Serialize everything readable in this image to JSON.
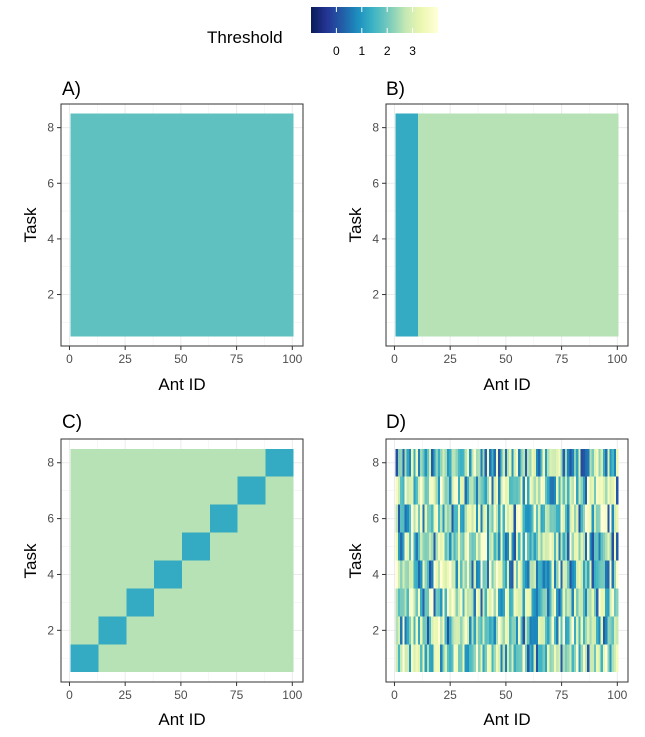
{
  "legend": {
    "title": "Threshold",
    "ticks": [
      "0",
      "1",
      "2",
      "3"
    ],
    "range": [
      -1,
      4
    ],
    "colors": [
      "#081d58",
      "#253494",
      "#225ea8",
      "#1d91c0",
      "#41b6c4",
      "#7fcdbb",
      "#c7e9b4",
      "#edf8b1",
      "#ffffd9"
    ]
  },
  "chart_data": [
    {
      "type": "heatmap",
      "panel_label": "A)",
      "xlabel": "Ant ID",
      "ylabel": "Task",
      "xlim": [
        0.5,
        100.5
      ],
      "ylim": [
        0.5,
        8.5
      ],
      "xticks": [
        "0",
        "25",
        "50",
        "75",
        "100"
      ],
      "yticks": [
        "2",
        "4",
        "6",
        "8"
      ],
      "pattern": "uniform",
      "value": 1.8,
      "grid": true
    },
    {
      "type": "heatmap",
      "panel_label": "B)",
      "xlabel": "Ant ID",
      "ylabel": "Task",
      "xlim": [
        0.5,
        100.5
      ],
      "ylim": [
        0.5,
        8.5
      ],
      "xticks": [
        "0",
        "25",
        "50",
        "75",
        "100"
      ],
      "yticks": [
        "2",
        "4",
        "6",
        "8"
      ],
      "pattern": "column_split",
      "low_cols": 10,
      "low_value": 1.3,
      "high_value": 2.6,
      "grid": true
    },
    {
      "type": "heatmap",
      "panel_label": "C)",
      "xlabel": "Ant ID",
      "ylabel": "Task",
      "xlim": [
        0.5,
        100.5
      ],
      "ylim": [
        0.5,
        8.5
      ],
      "xticks": [
        "0",
        "25",
        "50",
        "75",
        "100"
      ],
      "yticks": [
        "2",
        "4",
        "6",
        "8"
      ],
      "pattern": "diagonal_blocks",
      "block_width": 12.5,
      "block_value": 1.3,
      "background_value": 2.6,
      "grid": true
    },
    {
      "type": "heatmap",
      "panel_label": "D)",
      "xlabel": "Ant ID",
      "ylabel": "Task",
      "xlim": [
        0.5,
        100.5
      ],
      "ylim": [
        0.5,
        8.5
      ],
      "xticks": [
        "0",
        "25",
        "50",
        "75",
        "100"
      ],
      "yticks": [
        "2",
        "4",
        "6",
        "8"
      ],
      "pattern": "random",
      "value_range": [
        0,
        4
      ],
      "grid": true
    }
  ]
}
